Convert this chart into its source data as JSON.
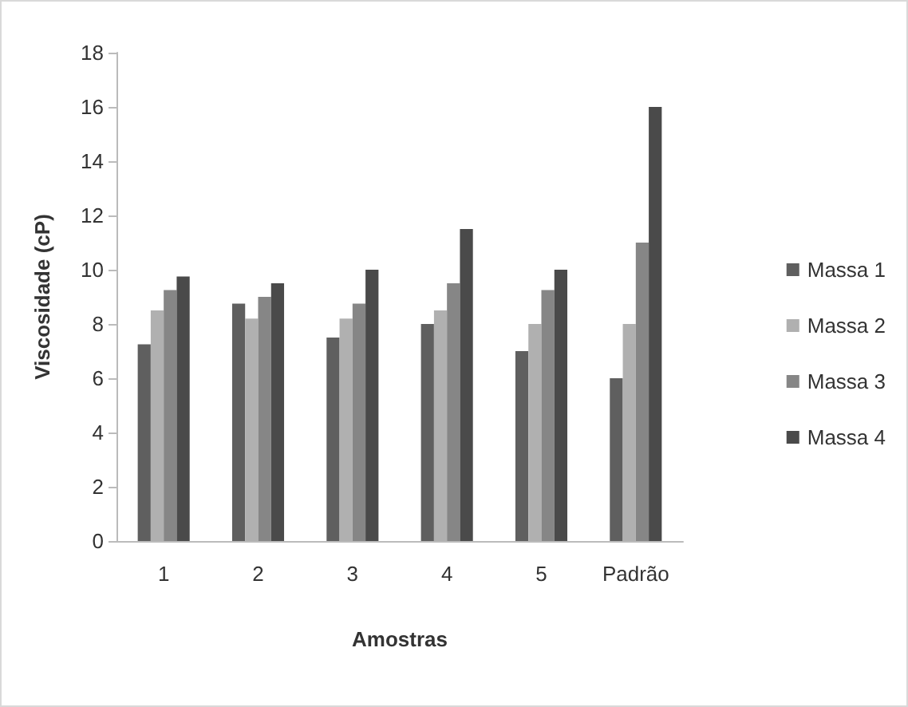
{
  "chart_data": {
    "type": "bar",
    "xlabel": "Amostras",
    "ylabel": "Viscosidade (cP)",
    "categories": [
      "1",
      "2",
      "3",
      "4",
      "5",
      "Padrão"
    ],
    "series": [
      {
        "name": "Massa 1",
        "color": "#5f5f5f",
        "values": [
          7.25,
          8.75,
          7.5,
          8,
          7,
          6
        ]
      },
      {
        "name": "Massa 2",
        "color": "#b0b0b0",
        "values": [
          8.5,
          8.2,
          8.2,
          8.5,
          8,
          8
        ]
      },
      {
        "name": "Massa 3",
        "color": "#868686",
        "values": [
          9.25,
          9,
          8.75,
          9.5,
          9.25,
          11
        ]
      },
      {
        "name": "Massa 4",
        "color": "#4a4a4a",
        "values": [
          9.75,
          9.5,
          10,
          11.5,
          10,
          16
        ]
      }
    ],
    "ylim": [
      0,
      18
    ],
    "yticks": [
      0,
      2,
      4,
      6,
      8,
      10,
      12,
      14,
      16,
      18
    ],
    "grid": false,
    "legend": "right"
  }
}
